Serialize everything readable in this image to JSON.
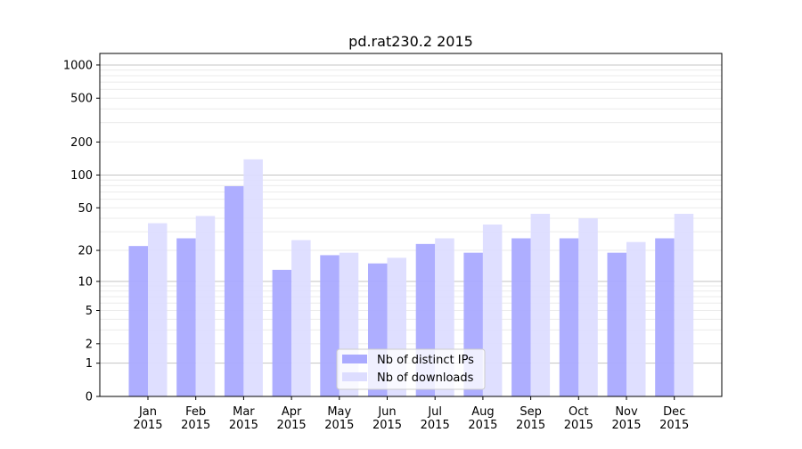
{
  "chart_data": {
    "type": "bar",
    "title": "pd.rat230.2 2015",
    "xlabel": "",
    "ylabel": "",
    "yscale": "symlog (log of 1+y)",
    "ylim": [
      0,
      1200
    ],
    "yticks": [
      "0",
      "1",
      "2",
      "5",
      "10",
      "20",
      "50",
      "100",
      "200",
      "500",
      "1000"
    ],
    "grid": true,
    "legend_position": "lower-center",
    "categories": [
      "Jan\n2015",
      "Feb\n2015",
      "Mar\n2015",
      "Apr\n2015",
      "May\n2015",
      "Jun\n2015",
      "Jul\n2015",
      "Aug\n2015",
      "Sep\n2015",
      "Oct\n2015",
      "Nov\n2015",
      "Dec\n2015"
    ],
    "series": [
      {
        "name": "Nb of distinct IPs",
        "color": "#aaaaff",
        "values": [
          22,
          26,
          79,
          13,
          18,
          15,
          23,
          19,
          26,
          26,
          19,
          26
        ]
      },
      {
        "name": "Nb of downloads",
        "color": "#ddddff",
        "values": [
          36,
          42,
          139,
          25,
          19,
          17,
          26,
          35,
          44,
          40,
          24,
          44
        ]
      }
    ]
  }
}
